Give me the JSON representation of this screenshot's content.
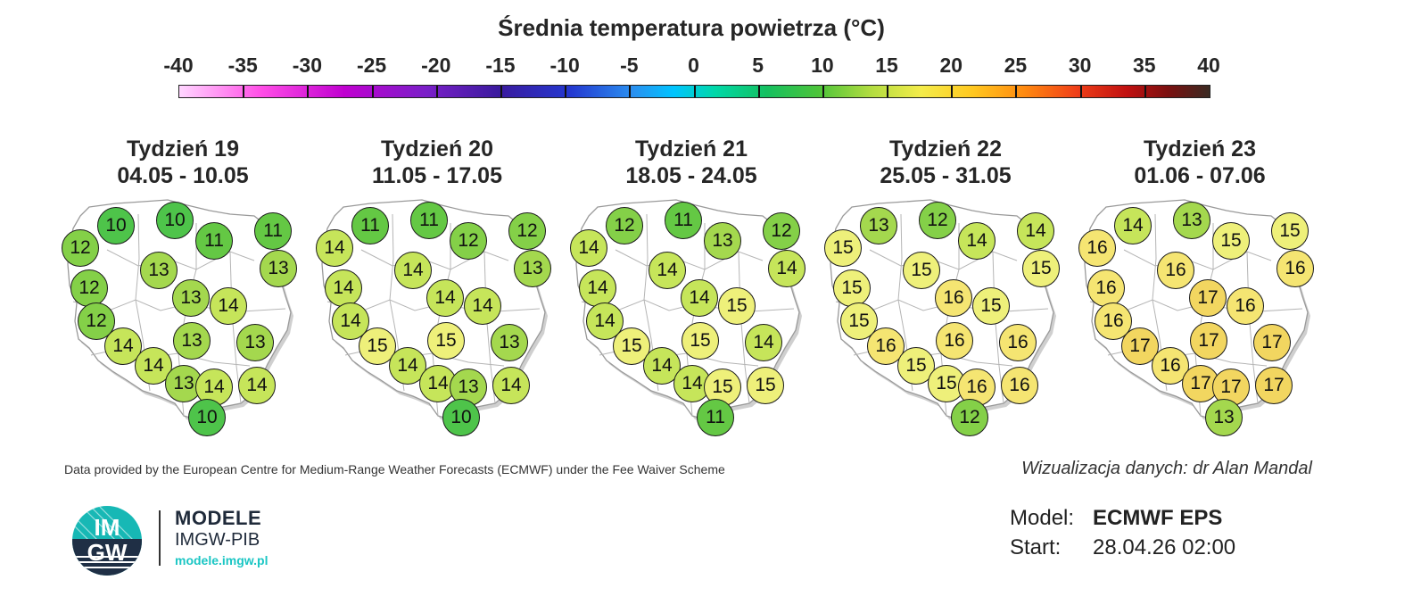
{
  "title": "Średnia temperatura powietrza (°C)",
  "legend": {
    "ticks": [
      "-40",
      "-35",
      "-30",
      "-25",
      "-20",
      "-15",
      "-10",
      "-5",
      "0",
      "5",
      "10",
      "15",
      "20",
      "25",
      "30",
      "35",
      "40"
    ],
    "min": -40,
    "max": 40
  },
  "colors": {
    "10": "#4ec44a",
    "11": "#64c844",
    "12": "#84d048",
    "13": "#a4d84e",
    "14": "#c6e55a",
    "15": "#eef07a",
    "16": "#f5e572",
    "17": "#f2d660"
  },
  "panels": [
    {
      "title": "Tydzień 19",
      "dates": "04.05 - 10.05",
      "values": [
        10,
        10,
        11,
        12,
        11,
        13,
        13,
        12,
        13,
        14,
        12,
        13,
        13,
        14,
        14,
        13,
        14,
        14,
        10
      ]
    },
    {
      "title": "Tydzień 20",
      "dates": "11.05 - 17.05",
      "values": [
        11,
        11,
        12,
        14,
        12,
        14,
        13,
        14,
        14,
        14,
        14,
        13,
        15,
        15,
        14,
        14,
        13,
        14,
        10
      ]
    },
    {
      "title": "Tydzień 21",
      "dates": "18.05 - 24.05",
      "values": [
        12,
        11,
        13,
        14,
        12,
        14,
        14,
        14,
        14,
        15,
        14,
        14,
        15,
        15,
        14,
        14,
        15,
        15,
        11
      ]
    },
    {
      "title": "Tydzień 22",
      "dates": "25.05 - 31.05",
      "values": [
        13,
        12,
        14,
        15,
        14,
        15,
        15,
        15,
        16,
        15,
        15,
        16,
        16,
        16,
        15,
        15,
        16,
        16,
        12
      ]
    },
    {
      "title": "Tydzień 23",
      "dates": "01.06 - 07.06",
      "values": [
        14,
        13,
        15,
        16,
        15,
        16,
        16,
        16,
        17,
        16,
        16,
        17,
        17,
        17,
        16,
        17,
        17,
        17,
        13
      ]
    }
  ],
  "credits": "Data provided by the European Centre for Medium-Range Weather Forecasts (ECMWF) under the Fee Waiver Scheme",
  "author": "Wizualizacja danych: dr Alan Mandal",
  "brand": {
    "logo_text_top": "IM",
    "logo_text_bottom": "GW",
    "name": "MODELE",
    "org": "IMGW-PIB",
    "url": "modele.imgw.pl"
  },
  "meta": {
    "model_label": "Model:",
    "model_value": "ECMWF EPS",
    "start_label": "Start:",
    "start_value": "28.04.26 02:00"
  }
}
